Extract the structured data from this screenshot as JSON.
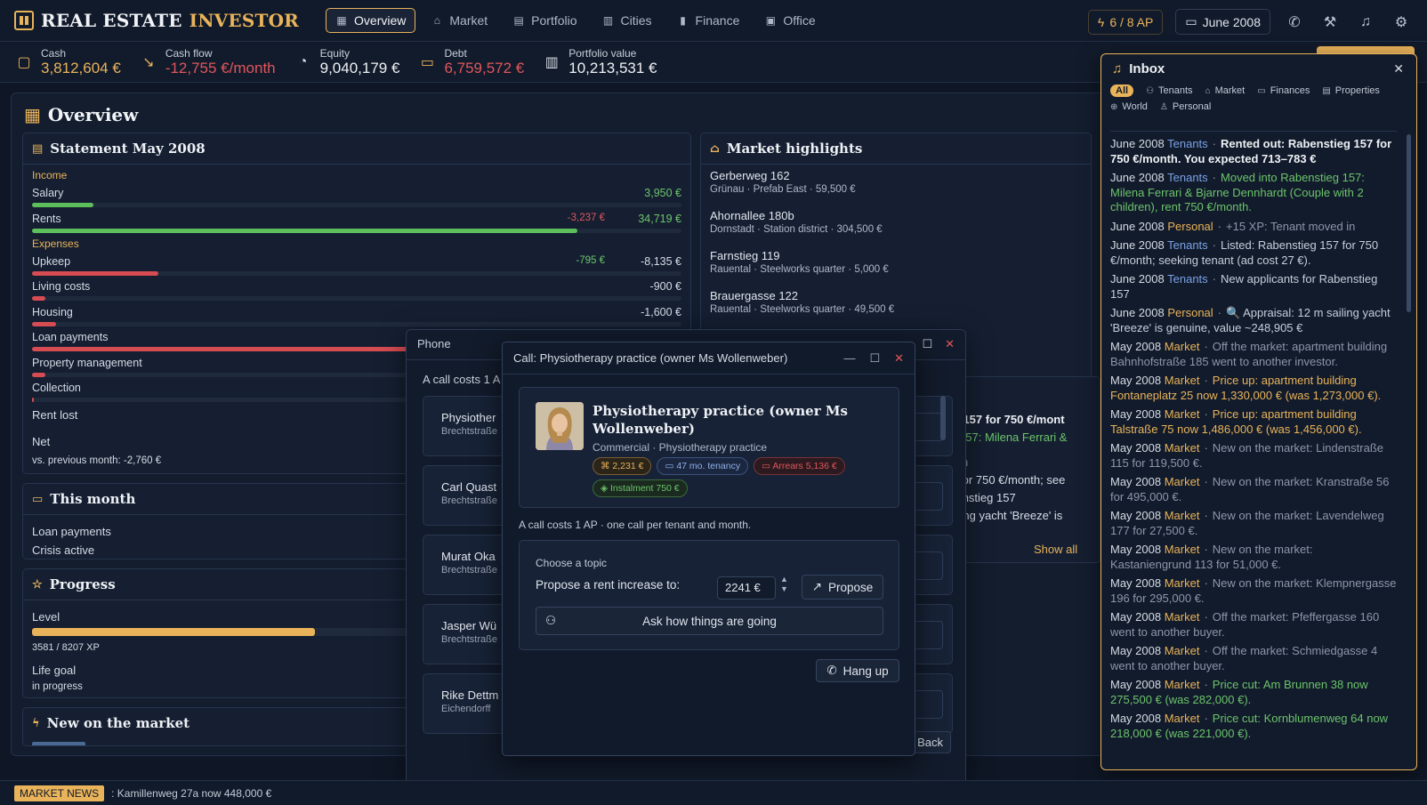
{
  "app": {
    "title_a": "REAL ESTATE",
    "title_b": "INVESTOR"
  },
  "nav": [
    {
      "label": "Overview",
      "icon": "grid-icon",
      "active": true
    },
    {
      "label": "Market",
      "icon": "store-icon"
    },
    {
      "label": "Portfolio",
      "icon": "building-icon"
    },
    {
      "label": "Cities",
      "icon": "map-icon"
    },
    {
      "label": "Finance",
      "icon": "chart-icon"
    },
    {
      "label": "Office",
      "icon": "briefcase-icon"
    }
  ],
  "header": {
    "ap": "6 / 8 AP",
    "date": "June 2008"
  },
  "stats": [
    {
      "label": "Cash",
      "value": "3,812,604 €",
      "color": "gold"
    },
    {
      "label": "Cash flow",
      "value": "-12,755 €/month",
      "color": "red"
    },
    {
      "label": "Equity",
      "value": "9,040,179 €",
      "color": "white"
    },
    {
      "label": "Debt",
      "value": "6,759,572 €",
      "color": "red"
    },
    {
      "label": "Portfolio value",
      "value": "10,213,531 €",
      "color": "white"
    }
  ],
  "overview": {
    "title": "Overview",
    "statement": {
      "title": "Statement May 2008",
      "income_label": "Income",
      "expenses_label": "Expenses",
      "rows": [
        {
          "label": "Salary",
          "value": "3,950 €",
          "delta": "",
          "bar": 0.095,
          "color": "green"
        },
        {
          "label": "Rents",
          "value": "34,719 €",
          "delta": "-3,237 €",
          "bar": 0.84,
          "color": "green"
        },
        {
          "label": "Upkeep",
          "value": "-8,135 €",
          "delta": "-795 €",
          "bar": 0.195,
          "color": "red"
        },
        {
          "label": "Living costs",
          "value": "-900 €",
          "delta": "",
          "bar": 0.021,
          "color": "red"
        },
        {
          "label": "Housing",
          "value": "-1,600 €",
          "delta": "",
          "bar": 0.037,
          "color": "red"
        },
        {
          "label": "Loan payments",
          "value": "",
          "delta": "",
          "bar": 0.6,
          "color": "red"
        },
        {
          "label": "Property management",
          "value": "",
          "delta": "",
          "bar": 0.021,
          "color": "red"
        },
        {
          "label": "Collection",
          "value": "",
          "delta": "",
          "bar": 0.003,
          "color": "red"
        }
      ],
      "rent_lost": "Rent lost",
      "net": "Net",
      "vs_prev": "vs. previous month: -2,760 €"
    },
    "this_month": {
      "title": "This month",
      "items": [
        "Loan payments",
        "Crisis active"
      ]
    },
    "progress": {
      "title": "Progress",
      "level_label": "Level",
      "level_fraction": 0.436,
      "xp": "3581 / 8207 XP",
      "life_goal": "Life goal",
      "life_goal_status": "in progress"
    },
    "new_market": {
      "title": "New on the market"
    },
    "market_highlights": {
      "title": "Market highlights",
      "items": [
        {
          "name": "Gerberweg 162",
          "sub": "Grünau · Prefab East · 59,500 €"
        },
        {
          "name": "Ahornallee 180b",
          "sub": "Dornstadt · Station district · 304,500 €"
        },
        {
          "name": "Farnstieg 119",
          "sub": "Rauental · Steelworks quarter · 5,000 €"
        },
        {
          "name": "Brauergasse 122",
          "sub": "Rauental · Steelworks quarter · 49,500 €"
        }
      ]
    },
    "activity_behind": [
      "ieg 157 for 750 €/mont",
      "eg 157: Milena Ferrari &",
      "ed in",
      "57 for 750 €/month; see",
      "abenstieg 157",
      "sailing yacht 'Breeze' is"
    ],
    "show_all": "Show all"
  },
  "phone": {
    "title": "Phone",
    "cost_note": "A call costs 1 A",
    "back": "Back",
    "contacts": [
      {
        "name": "Physiother",
        "address": "Brechtstraße"
      },
      {
        "name": "Carl Quast",
        "address": "Brechtstraße"
      },
      {
        "name": "Murat Oka",
        "address": "Brechtstraße"
      },
      {
        "name": "Jasper Wü",
        "address": "Brechtstraße"
      },
      {
        "name": "Rike Dettm",
        "address": "Eichendorff"
      }
    ]
  },
  "call": {
    "title": "Call: Physiotherapy practice (owner Ms Wollenweber)",
    "tenant_name": "Physiotherapy practice (owner Ms Wollenweber)",
    "tenant_sub": "Commercial · Physiotherapy practice",
    "badges": [
      {
        "text": "2,231 €",
        "style": "g1",
        "icon": "tag-icon"
      },
      {
        "text": "47 mo. tenancy",
        "style": "b1",
        "icon": "calendar-icon"
      },
      {
        "text": "Arrears 5,136 €",
        "style": "r1",
        "icon": "card-icon"
      },
      {
        "text": "Instalment 750 €",
        "style": "gr",
        "icon": "shield-icon"
      }
    ],
    "note": "A call costs 1 AP · one call per tenant and month.",
    "topic_label": "Choose a topic",
    "propose_label": "Propose a rent increase to:",
    "rent_value": "2241 €",
    "propose_button": "Propose",
    "ask_button": "Ask how things are going",
    "hang_up": "Hang up"
  },
  "inbox": {
    "title": "Inbox",
    "filters": [
      {
        "label": "All",
        "icon": ""
      },
      {
        "label": "Tenants",
        "icon": "users-icon"
      },
      {
        "label": "Market",
        "icon": "store-icon"
      },
      {
        "label": "Finances",
        "icon": "money-icon"
      },
      {
        "label": "Properties",
        "icon": "building-icon"
      },
      {
        "label": "World",
        "icon": "globe-icon"
      },
      {
        "label": "Personal",
        "icon": "person-icon"
      }
    ],
    "messages": [
      {
        "date": "June 2008",
        "cat": "Tenants",
        "ctype": "t",
        "style": "bold",
        "text": "Rented out: Rabenstieg 157 for 750 €/month. You expected 713–783 €"
      },
      {
        "date": "June 2008",
        "cat": "Tenants",
        "ctype": "t",
        "style": "grn",
        "text": "Moved into Rabenstieg 157: Milena Ferrari & Bjarne Dennhardt (Couple with 2 children), rent 750 €/month."
      },
      {
        "date": "June 2008",
        "cat": "Personal",
        "ctype": "p",
        "style": "dim",
        "text": "+15 XP: Tenant moved in"
      },
      {
        "date": "June 2008",
        "cat": "Tenants",
        "ctype": "t",
        "style": "",
        "text": "Listed: Rabenstieg 157 for 750 €/month; seeking tenant (ad cost 27 €)."
      },
      {
        "date": "June 2008",
        "cat": "Tenants",
        "ctype": "t",
        "style": "",
        "text": "New applicants for Rabenstieg 157"
      },
      {
        "date": "June 2008",
        "cat": "Personal",
        "ctype": "p",
        "style": "",
        "text": "🔍 Appraisal: 12 m sailing yacht 'Breeze' is genuine, value ~248,905 €"
      },
      {
        "date": "May 2008",
        "cat": "Market",
        "ctype": "m",
        "style": "dim",
        "text": "Off the market: apartment building Bahnhofstraße 185 went to another investor."
      },
      {
        "date": "May 2008",
        "cat": "Market",
        "ctype": "m",
        "style": "gld",
        "text": "Price up: apartment building Fontaneplatz 25 now 1,330,000 € (was 1,273,000 €)."
      },
      {
        "date": "May 2008",
        "cat": "Market",
        "ctype": "m",
        "style": "gld",
        "text": "Price up: apartment building Talstraße 75 now 1,486,000 € (was 1,456,000 €)."
      },
      {
        "date": "May 2008",
        "cat": "Market",
        "ctype": "m",
        "style": "dim",
        "text": "New on the market: Lindenstraße 115 for 119,500 €."
      },
      {
        "date": "May 2008",
        "cat": "Market",
        "ctype": "m",
        "style": "dim",
        "text": "New on the market: Kranstraße 56 for 495,000 €."
      },
      {
        "date": "May 2008",
        "cat": "Market",
        "ctype": "m",
        "style": "dim",
        "text": "New on the market: Lavendelweg 177 for 27,500 €."
      },
      {
        "date": "May 2008",
        "cat": "Market",
        "ctype": "m",
        "style": "dim",
        "text": "New on the market: Kastaniengrund 113 for 51,000 €."
      },
      {
        "date": "May 2008",
        "cat": "Market",
        "ctype": "m",
        "style": "dim",
        "text": "New on the market: Klempnergasse 196 for 295,000 €."
      },
      {
        "date": "May 2008",
        "cat": "Market",
        "ctype": "m",
        "style": "dim",
        "text": "Off the market: Pfeffergasse 160 went to another buyer."
      },
      {
        "date": "May 2008",
        "cat": "Market",
        "ctype": "m",
        "style": "dim",
        "text": "Off the market: Schmiedgasse 4 went to another buyer."
      },
      {
        "date": "May 2008",
        "cat": "Market",
        "ctype": "m",
        "style": "grn",
        "text": "Price cut: Am Brunnen 38 now 275,500 € (was 282,000 €)."
      },
      {
        "date": "May 2008",
        "cat": "Market",
        "ctype": "m",
        "style": "grn",
        "text": "Price cut: Kornblumenweg 64 now 218,000 € (was 221,000 €)."
      }
    ]
  },
  "news": {
    "tag": "MARKET NEWS",
    "text": ": Kamillenweg 27a now 448,000 €"
  }
}
